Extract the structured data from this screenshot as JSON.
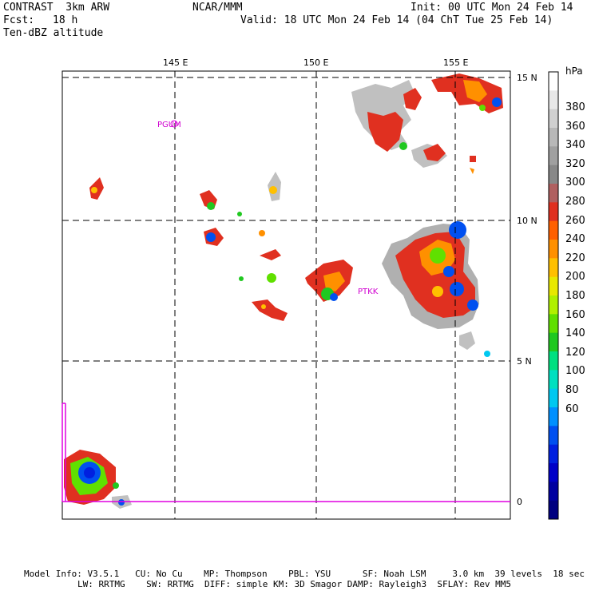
{
  "header": {
    "title_left": "CONTRAST  3km ARW",
    "title_center": "NCAR/MMM",
    "init": "Init: 00 UTC Mon 24 Feb 14",
    "fcst_label": "Fcst:",
    "fcst_value": "18 h",
    "valid": "Valid: 18 UTC Mon 24 Feb 14 (04 ChT Tue 25 Feb 14)",
    "field": "Ten-dBZ altitude"
  },
  "map": {
    "lon_labels": [
      "145 E",
      "150 E",
      "155 E"
    ],
    "lat_labels": [
      "15 N",
      "10 N",
      "5 N",
      "0"
    ],
    "stations": [
      "PGUM",
      "PTKK"
    ]
  },
  "colorbar": {
    "unit": "hPa",
    "labels": [
      "380",
      "360",
      "340",
      "320",
      "300",
      "280",
      "260",
      "240",
      "220",
      "200",
      "180",
      "160",
      "140",
      "120",
      "100",
      "80",
      "60"
    ],
    "colors": [
      "#ffffff",
      "#e8e8e8",
      "#d0d0d0",
      "#b8b8b8",
      "#a0a0a0",
      "#888888",
      "#b06060",
      "#e03020",
      "#ff6000",
      "#ff9000",
      "#ffc000",
      "#e8e800",
      "#b0f000",
      "#60e000",
      "#20c820",
      "#00e080",
      "#00e0c0",
      "#00c8f0",
      "#0090ff",
      "#0050f0",
      "#0020e0",
      "#0000c8",
      "#0000a0",
      "#000080"
    ]
  },
  "footer": {
    "line1": "Model Info: V3.5.1   CU: No Cu    MP: Thompson    PBL: YSU      SF: Noah LSM     3.0 km  39 levels  18 sec",
    "line2": "LW: RRTMG    SW: RRTMG  DIFF: simple KM: 3D Smagor DAMP: Rayleigh3  SFLAY: Rev MM5"
  }
}
